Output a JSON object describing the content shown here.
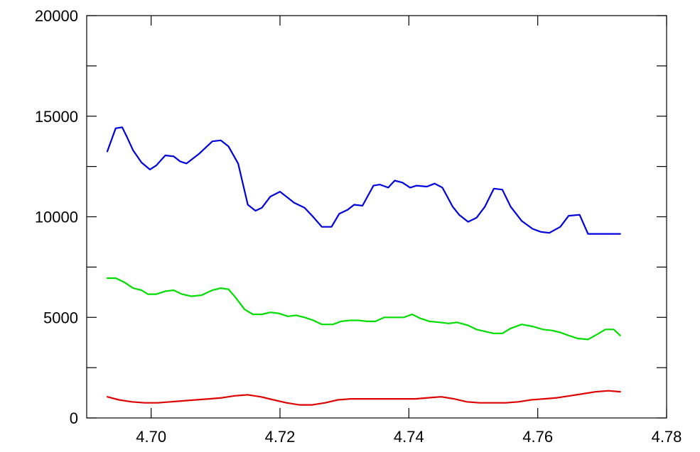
{
  "chart_data": {
    "type": "line",
    "title": "",
    "xlabel": "",
    "ylabel": "",
    "xlim": [
      4.69,
      4.78
    ],
    "ylim": [
      0,
      20000
    ],
    "x_ticks": [
      4.7,
      4.72,
      4.74,
      4.76,
      4.78
    ],
    "x_tick_labels": [
      "4.70",
      "4.72",
      "4.74",
      "4.76",
      "4.78"
    ],
    "y_ticks": [
      0,
      5000,
      10000,
      15000,
      20000
    ],
    "y_tick_labels": [
      "0",
      "5000",
      "10000",
      "15000",
      "20000"
    ],
    "grid": false,
    "legend": "none",
    "series": [
      {
        "color": "#0000dd",
        "x": [
          4.6932,
          4.6945,
          4.6955,
          4.6962,
          4.6972,
          4.6985,
          4.6998,
          4.7008,
          4.7022,
          4.7035,
          4.7045,
          4.7055,
          4.7075,
          4.7095,
          4.7108,
          4.712,
          4.7135,
          4.715,
          4.7162,
          4.7172,
          4.7185,
          4.72,
          4.7212,
          4.7222,
          4.7238,
          4.725,
          4.7265,
          4.728,
          4.7292,
          4.7305,
          4.7315,
          4.7328,
          4.7345,
          4.7355,
          4.7368,
          4.7378,
          4.739,
          4.7402,
          4.7412,
          4.7428,
          4.744,
          4.7452,
          4.7468,
          4.7478,
          4.7492,
          4.7505,
          4.7518,
          4.7532,
          4.7545,
          4.7558,
          4.7575,
          4.7592,
          4.7605,
          4.7618,
          4.7635,
          4.7648,
          4.7665,
          4.7678,
          4.7692,
          4.7705,
          4.7718,
          4.7728
        ],
        "values": [
          13250,
          14400,
          14450,
          14000,
          13300,
          12700,
          12350,
          12550,
          13050,
          13000,
          12750,
          12650,
          13150,
          13750,
          13800,
          13500,
          12650,
          10600,
          10300,
          10450,
          11000,
          11250,
          10950,
          10700,
          10450,
          10050,
          9500,
          9500,
          10150,
          10350,
          10600,
          10550,
          11550,
          11600,
          11450,
          11800,
          11700,
          11450,
          11550,
          11500,
          11650,
          11450,
          10500,
          10100,
          9750,
          9950,
          10500,
          11400,
          11350,
          10500,
          9800,
          9400,
          9250,
          9200,
          9500,
          10050,
          10100,
          9150,
          9150,
          9150,
          9150,
          9150
        ]
      },
      {
        "color": "#00dd00",
        "x": [
          4.6932,
          4.6945,
          4.6958,
          4.6972,
          4.6985,
          4.6995,
          4.7008,
          4.7022,
          4.7035,
          4.7048,
          4.7062,
          4.7078,
          4.7095,
          4.7108,
          4.712,
          4.7132,
          4.7145,
          4.7158,
          4.7172,
          4.7185,
          4.7198,
          4.7212,
          4.7225,
          4.7238,
          4.7252,
          4.7265,
          4.7282,
          4.7295,
          4.7308,
          4.7322,
          4.7335,
          4.7348,
          4.7362,
          4.7375,
          4.7392,
          4.7405,
          4.7418,
          4.7432,
          4.7448,
          4.7462,
          4.7475,
          4.7492,
          4.7505,
          4.7518,
          4.7532,
          4.7545,
          4.7558,
          4.7575,
          4.7592,
          4.7608,
          4.7622,
          4.7635,
          4.7648,
          4.7662,
          4.7678,
          4.7692,
          4.7705,
          4.7718,
          4.7728
        ],
        "values": [
          6950,
          6950,
          6750,
          6450,
          6350,
          6150,
          6150,
          6300,
          6350,
          6150,
          6050,
          6100,
          6350,
          6450,
          6400,
          5950,
          5400,
          5150,
          5150,
          5250,
          5200,
          5050,
          5100,
          5000,
          4850,
          4650,
          4650,
          4800,
          4850,
          4850,
          4800,
          4800,
          5000,
          5000,
          5000,
          5150,
          4950,
          4800,
          4750,
          4700,
          4750,
          4600,
          4400,
          4300,
          4200,
          4200,
          4450,
          4650,
          4550,
          4400,
          4350,
          4250,
          4100,
          3950,
          3900,
          4150,
          4400,
          4400,
          4100
        ]
      },
      {
        "color": "#dd0000",
        "x": [
          4.6932,
          4.695,
          4.697,
          4.699,
          4.701,
          4.703,
          4.705,
          4.707,
          4.709,
          4.711,
          4.713,
          4.715,
          4.717,
          4.719,
          4.721,
          4.723,
          4.725,
          4.727,
          4.729,
          4.731,
          4.733,
          4.735,
          4.737,
          4.739,
          4.741,
          4.743,
          4.745,
          4.747,
          4.749,
          4.751,
          4.753,
          4.755,
          4.757,
          4.759,
          4.761,
          4.763,
          4.765,
          4.767,
          4.769,
          4.771,
          4.7728
        ],
        "values": [
          1050,
          900,
          800,
          750,
          750,
          800,
          850,
          900,
          950,
          1000,
          1100,
          1150,
          1050,
          900,
          750,
          650,
          650,
          750,
          900,
          950,
          950,
          950,
          950,
          950,
          950,
          1000,
          1050,
          950,
          800,
          750,
          750,
          750,
          800,
          900,
          950,
          1000,
          1100,
          1200,
          1300,
          1350,
          1300
        ]
      }
    ]
  }
}
